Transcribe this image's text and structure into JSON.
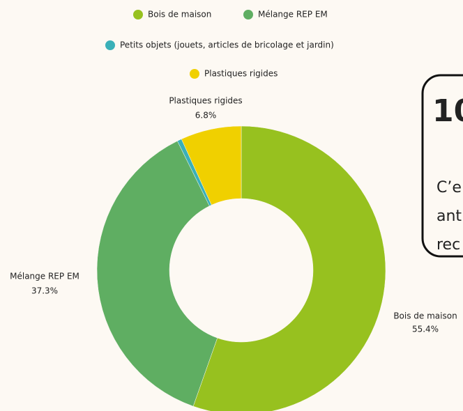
{
  "chart_data": {
    "type": "donut",
    "categories": [
      "Bois de maison",
      "Mélange REP EM",
      "Petits objets (jouets, articles de bricolage et jardin)",
      "Plastiques rigides"
    ],
    "values": [
      55.4,
      37.3,
      0.5,
      6.8
    ],
    "value_labels": [
      "55.4%",
      "37.3%",
      null,
      "6.8%"
    ],
    "colors": [
      "#97c11f",
      "#5fae62",
      "#3ab0b8",
      "#f0d000"
    ]
  },
  "card": {
    "heading": "10",
    "lines": [
      "C’e",
      "ant",
      "rec"
    ]
  }
}
